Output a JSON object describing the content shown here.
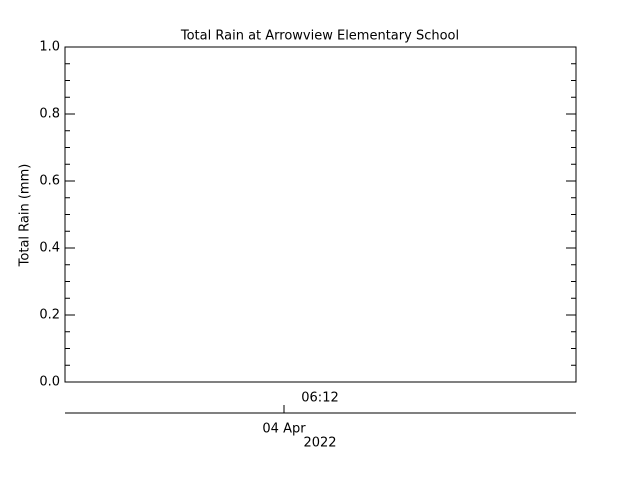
{
  "chart_data": {
    "type": "line",
    "title": "Total Rain at Arrowview Elementary School",
    "y_label": "Total Rain (mm)",
    "ylim": [
      0,
      1
    ],
    "yticks": [
      {
        "value": 0,
        "label": "0.0"
      },
      0.2,
      0.4,
      0.6,
      0.8,
      {
        "value": 1,
        "label": "1.0"
      }
    ],
    "x_tick_labels": [
      "06:12"
    ],
    "date_axis": {
      "label": "04 Apr",
      "year": "2022"
    },
    "grid": false
  }
}
